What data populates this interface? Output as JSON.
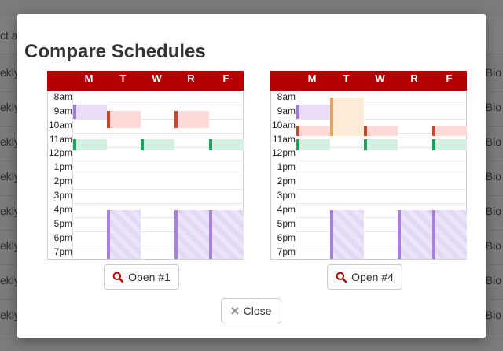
{
  "background": {
    "header_left": "ct a",
    "rows": [
      {
        "left": "ekly",
        "right": "Bio"
      },
      {
        "left": "ekly",
        "right": "Bio"
      },
      {
        "left": "ekly",
        "right": "Bio"
      },
      {
        "left": "ekly",
        "right": "Bio"
      },
      {
        "left": "ekly",
        "right": "Bio"
      },
      {
        "left": "ekly",
        "right": "Bio"
      },
      {
        "left": "ekly",
        "right": "Bio"
      },
      {
        "left": "ekly",
        "right": "Bio"
      }
    ]
  },
  "modal": {
    "title": "Compare Schedules",
    "days": [
      "M",
      "T",
      "W",
      "R",
      "F"
    ],
    "hours": [
      "8am",
      "9am",
      "10am",
      "11am",
      "12pm",
      "1pm",
      "2pm",
      "3pm",
      "4pm",
      "5pm",
      "6pm",
      "7pm"
    ],
    "schedules": [
      {
        "open_label": "Open #1"
      },
      {
        "open_label": "Open #4"
      }
    ],
    "close_label": "Close",
    "colors": {
      "header": "#b30000",
      "open_icon": "#b30000"
    }
  }
}
